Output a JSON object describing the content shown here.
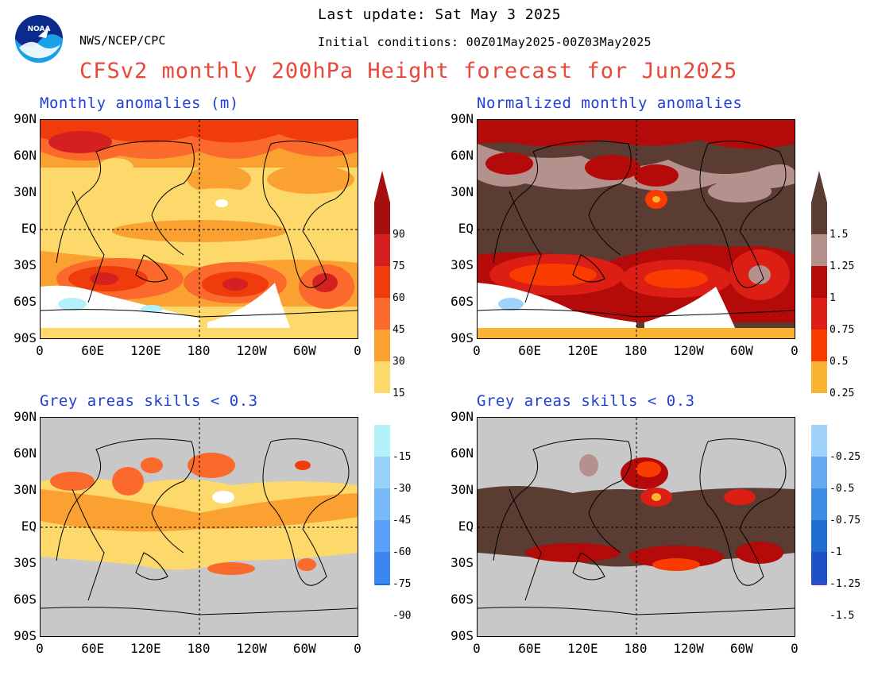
{
  "header": {
    "last_update": "Last update: Sat May 3 2025",
    "initial_conditions": "Initial conditions: 00Z01May2025-00Z03May2025",
    "agency": "NWS/NCEP/CPC",
    "logo_text": "NOAA",
    "title": "CFSv2 monthly 200hPa Height forecast for Jun2025"
  },
  "panels": {
    "top_left": {
      "title": "Monthly anomalies (m)"
    },
    "top_right": {
      "title": "Normalized monthly anomalies"
    },
    "bottom_left": {
      "title": "Grey areas skills < 0.3"
    },
    "bottom_right": {
      "title": "Grey areas skills < 0.3"
    }
  },
  "axes": {
    "lat_labels": [
      "90N",
      "60N",
      "30N",
      "EQ",
      "30S",
      "60S",
      "90S"
    ],
    "lon_labels": [
      "0",
      "60E",
      "120E",
      "180",
      "120W",
      "60W",
      "0"
    ]
  },
  "colorbar_left": {
    "labels": [
      "90",
      "75",
      "60",
      "45",
      "30",
      "15",
      "-15",
      "-30",
      "-45",
      "-60",
      "-75",
      "-90"
    ],
    "colors_warm": [
      "#a50f0f",
      "#d42020",
      "#f03c0c",
      "#fb6a2c",
      "#fba132",
      "#fdd86a"
    ],
    "colors_cool": [
      "#b4f0fa",
      "#96d2fa",
      "#78b9fa",
      "#5aa0fa",
      "#3c86f0",
      "#1e6ed2"
    ]
  },
  "colorbar_right": {
    "labels": [
      "1.5",
      "1.25",
      "1",
      "0.75",
      "0.5",
      "0.25",
      "-0.25",
      "-0.5",
      "-0.75",
      "-1",
      "-1.25",
      "-1.5"
    ],
    "colors_warm": [
      "#5a3c32",
      "#b4918c",
      "#b40a0a",
      "#dc1e14",
      "#fa3c00",
      "#fbb432"
    ],
    "colors_cool": [
      "#a0d2fa",
      "#64aaf0",
      "#3c8ce6",
      "#1e6ed2",
      "#1e50c8",
      "#5a3cc8"
    ]
  },
  "colors": {
    "title_red": "#e8483a",
    "panel_blue": "#1f3fd6",
    "skill_grey": "#c8c8c8",
    "ocean_white": "#ffffff"
  }
}
